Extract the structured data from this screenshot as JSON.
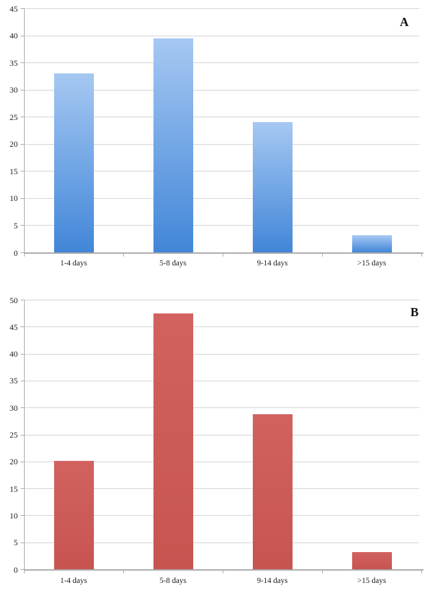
{
  "figure": {
    "background": "#ffffff",
    "gridline_color": "#d4d4d4",
    "axis_color": "#ababab",
    "text_color": "#1a1a1a"
  },
  "chart_data": [
    {
      "type": "bar",
      "panel_label": "A",
      "title": "",
      "xlabel": "",
      "ylabel": "",
      "categories": [
        "1-4 days",
        "5-8 days",
        "9-14 days",
        ">15 days"
      ],
      "values": [
        33,
        39.5,
        24,
        3.2
      ],
      "ylim": [
        0,
        45
      ],
      "ytick_step": 5,
      "yticks": [
        "0",
        "5",
        "10",
        "15",
        "20",
        "25",
        "30",
        "35",
        "40",
        "45"
      ],
      "grid": true,
      "legend_position": "none",
      "bar_color_top": "#a6c8f2",
      "bar_color_bottom": "#4186d8"
    },
    {
      "type": "bar",
      "panel_label": "B",
      "title": "",
      "xlabel": "",
      "ylabel": "",
      "categories": [
        "1-4 days",
        "5-8 days",
        "9-14 days",
        ">15 days"
      ],
      "values": [
        20.1,
        47.4,
        28.7,
        3.2
      ],
      "ylim": [
        0,
        50
      ],
      "ytick_step": 5,
      "yticks": [
        "0",
        "5",
        "10",
        "15",
        "20",
        "25",
        "30",
        "35",
        "40",
        "45",
        "50"
      ],
      "grid": true,
      "legend_position": "none",
      "bar_color_top": "#d16260",
      "bar_color_bottom": "#c85450"
    }
  ]
}
